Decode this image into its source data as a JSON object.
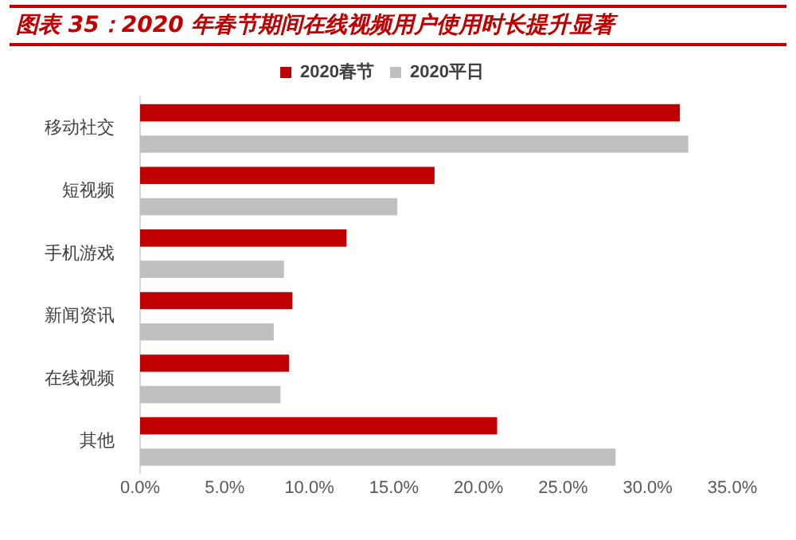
{
  "chart_data": {
    "type": "bar",
    "title": "图表 35：2020 年春节期间在线视频用户使用时长提升显著",
    "orientation": "horizontal",
    "categories": [
      "移动社交",
      "短视频",
      "手机游戏",
      "新闻资讯",
      "在线视频",
      "其他"
    ],
    "series": [
      {
        "name": "2020春节",
        "color": "#c00000",
        "values": [
          31.9,
          17.4,
          12.2,
          9.0,
          8.8,
          21.1
        ]
      },
      {
        "name": "2020平日",
        "color": "#bfbfbf",
        "values": [
          32.4,
          15.2,
          8.5,
          7.9,
          8.3,
          28.1
        ]
      }
    ],
    "xlim": [
      0,
      35
    ],
    "xticks": [
      {
        "value": 0,
        "label": "0.0%"
      },
      {
        "value": 5,
        "label": "5.0%"
      },
      {
        "value": 10,
        "label": "10.0%"
      },
      {
        "value": 15,
        "label": "15.0%"
      },
      {
        "value": 20,
        "label": "20.0%"
      },
      {
        "value": 25,
        "label": "25.0%"
      },
      {
        "value": 30,
        "label": "30.0%"
      },
      {
        "value": 35,
        "label": "35.0%"
      }
    ],
    "grid": false,
    "legend": "top"
  }
}
